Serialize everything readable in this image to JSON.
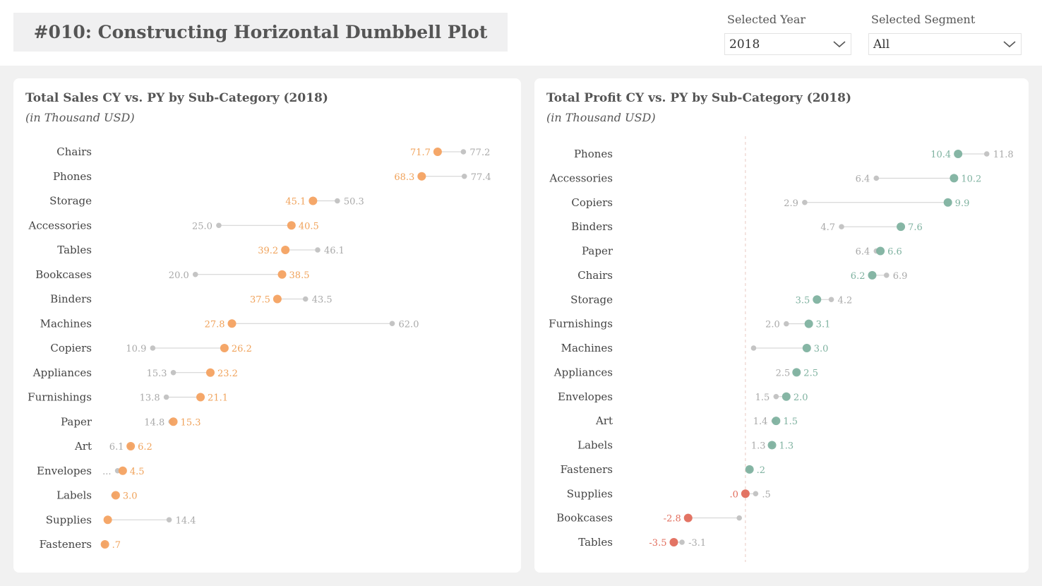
{
  "header": {
    "title": "#010: Constructing Horizontal Dumbbell Plot"
  },
  "filters": {
    "year": {
      "label": "Selected Year",
      "value": "2018"
    },
    "segment": {
      "label": "Selected Segment",
      "value": "All"
    }
  },
  "colors": {
    "sales_cy": "#f4a261",
    "sales_cy_label": "#f0a25a",
    "py": "#c4c4c4",
    "py_label": "#a9a9a9",
    "profit_pos": "#7fb2a0",
    "profit_neg": "#e26d5c"
  },
  "chart_data": [
    {
      "type": "dumbbell",
      "title": "Total Sales CY vs. PY by Sub-Category (2018)",
      "subtitle": "(in Thousand USD)",
      "series": [
        {
          "name": "CY"
        },
        {
          "name": "PY"
        }
      ],
      "rows": [
        {
          "category": "Chairs",
          "cy": 71.7,
          "py": 77.2,
          "cy_label": "71.7",
          "py_label": "77.2"
        },
        {
          "category": "Phones",
          "cy": 68.3,
          "py": 77.4,
          "cy_label": "68.3",
          "py_label": "77.4"
        },
        {
          "category": "Storage",
          "cy": 45.1,
          "py": 50.3,
          "cy_label": "45.1",
          "py_label": "50.3"
        },
        {
          "category": "Accessories",
          "cy": 40.5,
          "py": 25.0,
          "cy_label": "40.5",
          "py_label": "25.0"
        },
        {
          "category": "Tables",
          "cy": 39.2,
          "py": 46.1,
          "cy_label": "39.2",
          "py_label": "46.1"
        },
        {
          "category": "Bookcases",
          "cy": 38.5,
          "py": 20.0,
          "cy_label": "38.5",
          "py_label": "20.0"
        },
        {
          "category": "Binders",
          "cy": 37.5,
          "py": 43.5,
          "cy_label": "37.5",
          "py_label": "43.5"
        },
        {
          "category": "Machines",
          "cy": 27.8,
          "py": 62.0,
          "cy_label": "27.8",
          "py_label": "62.0"
        },
        {
          "category": "Copiers",
          "cy": 26.2,
          "py": 10.9,
          "cy_label": "26.2",
          "py_label": "10.9"
        },
        {
          "category": "Appliances",
          "cy": 23.2,
          "py": 15.3,
          "cy_label": "23.2",
          "py_label": "15.3"
        },
        {
          "category": "Furnishings",
          "cy": 21.1,
          "py": 13.8,
          "cy_label": "21.1",
          "py_label": "13.8"
        },
        {
          "category": "Paper",
          "cy": 15.3,
          "py": 14.8,
          "cy_label": "15.3",
          "py_label": "14.8"
        },
        {
          "category": "Art",
          "cy": 6.2,
          "py": 6.1,
          "cy_label": "6.2",
          "py_label": "6.1"
        },
        {
          "category": "Envelopes",
          "cy": 4.5,
          "py": 3.4,
          "cy_label": "4.5",
          "py_label": "..."
        },
        {
          "category": "Labels",
          "cy": 3.0,
          "py": 2.6,
          "cy_label": "3.0",
          "py_label": ""
        },
        {
          "category": "Supplies",
          "cy": 1.3,
          "py": 14.4,
          "cy_label": "",
          "py_label": "14.4"
        },
        {
          "category": "Fasteners",
          "cy": 0.7,
          "py": 0.5,
          "cy_label": ".7",
          "py_label": ""
        }
      ],
      "xlim": [
        0,
        80
      ]
    },
    {
      "type": "dumbbell",
      "title": "Total Profit CY vs. PY by Sub-Category (2018)",
      "subtitle": "(in Thousand USD)",
      "series": [
        {
          "name": "CY"
        },
        {
          "name": "PY"
        }
      ],
      "rows": [
        {
          "category": "Phones",
          "cy": 10.4,
          "py": 11.8,
          "cy_label": "10.4",
          "py_label": "11.8"
        },
        {
          "category": "Accessories",
          "cy": 10.2,
          "py": 6.4,
          "cy_label": "10.2",
          "py_label": "6.4"
        },
        {
          "category": "Copiers",
          "cy": 9.9,
          "py": 2.9,
          "cy_label": "9.9",
          "py_label": "2.9"
        },
        {
          "category": "Binders",
          "cy": 7.6,
          "py": 4.7,
          "cy_label": "7.6",
          "py_label": "4.7"
        },
        {
          "category": "Paper",
          "cy": 6.6,
          "py": 6.4,
          "cy_label": "6.6",
          "py_label": "6.4"
        },
        {
          "category": "Chairs",
          "cy": 6.2,
          "py": 6.9,
          "cy_label": "6.2",
          "py_label": "6.9"
        },
        {
          "category": "Storage",
          "cy": 3.5,
          "py": 4.2,
          "cy_label": "3.5",
          "py_label": "4.2"
        },
        {
          "category": "Furnishings",
          "cy": 3.1,
          "py": 2.0,
          "cy_label": "3.1",
          "py_label": "2.0"
        },
        {
          "category": "Machines",
          "cy": 3.0,
          "py": 0.4,
          "cy_label": "3.0",
          "py_label": ""
        },
        {
          "category": "Appliances",
          "cy": 2.5,
          "py": 2.5,
          "cy_label": "2.5",
          "py_label": "2.5"
        },
        {
          "category": "Envelopes",
          "cy": 2.0,
          "py": 1.5,
          "cy_label": "2.0",
          "py_label": "1.5"
        },
        {
          "category": "Art",
          "cy": 1.5,
          "py": 1.4,
          "cy_label": "1.5",
          "py_label": "1.4"
        },
        {
          "category": "Labels",
          "cy": 1.3,
          "py": 1.3,
          "cy_label": "1.3",
          "py_label": "1.3"
        },
        {
          "category": "Fasteners",
          "cy": 0.2,
          "py": 0.2,
          "cy_label": ".2",
          "py_label": ""
        },
        {
          "category": "Supplies",
          "cy": 0.0,
          "py": 0.5,
          "cy_label": ".0",
          "py_label": ".5"
        },
        {
          "category": "Bookcases",
          "cy": -2.8,
          "py": -0.3,
          "cy_label": "-2.8",
          "py_label": ""
        },
        {
          "category": "Tables",
          "cy": -3.5,
          "py": -3.1,
          "cy_label": "-3.5",
          "py_label": "-3.1"
        }
      ],
      "xlim": [
        -4,
        12.5
      ],
      "zero_line": true
    }
  ]
}
